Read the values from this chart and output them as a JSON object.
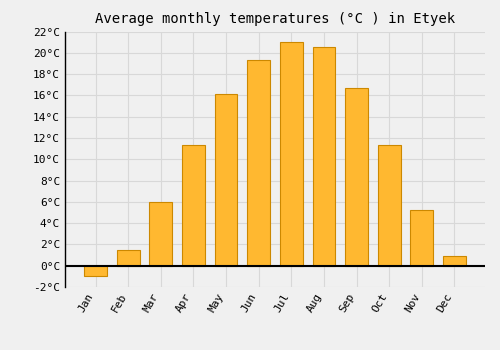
{
  "title": "Average monthly temperatures (°C ) in Etyek",
  "months": [
    "Jan",
    "Feb",
    "Mar",
    "Apr",
    "May",
    "Jun",
    "Jul",
    "Aug",
    "Sep",
    "Oct",
    "Nov",
    "Dec"
  ],
  "values": [
    -1.0,
    1.5,
    6.0,
    11.3,
    16.1,
    19.3,
    21.0,
    20.5,
    16.7,
    11.3,
    5.2,
    0.9
  ],
  "bar_color": "#FFB830",
  "bar_edge_color": "#CC8800",
  "ylim": [
    -2,
    22
  ],
  "yticks": [
    -2,
    0,
    2,
    4,
    6,
    8,
    10,
    12,
    14,
    16,
    18,
    20,
    22
  ],
  "ytick_labels": [
    "-2°C",
    "0°C",
    "2°C",
    "4°C",
    "6°C",
    "8°C",
    "10°C",
    "12°C",
    "14°C",
    "16°C",
    "18°C",
    "20°C",
    "22°C"
  ],
  "background_color": "#f0f0f0",
  "grid_color": "#d8d8d8",
  "title_fontsize": 10,
  "tick_fontsize": 8,
  "font_family": "monospace"
}
